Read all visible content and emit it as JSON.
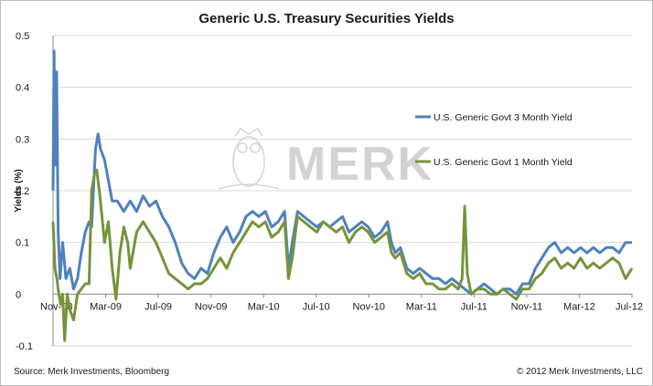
{
  "chart_data": {
    "type": "line",
    "title": "Generic U.S. Treasury Securities Yields",
    "xlabel": "",
    "ylabel": "Yields (%)",
    "ylim": [
      -0.1,
      0.5
    ],
    "yticks": [
      -0.1,
      0,
      0.1,
      0.2,
      0.3,
      0.4,
      0.5
    ],
    "x_tick_labels": [
      "Nov-08",
      "Mar-09",
      "Jul-09",
      "Nov-09",
      "Mar-10",
      "Jul-10",
      "Nov-10",
      "Mar-11",
      "Jul-11",
      "Nov-11",
      "Mar-12",
      "Jul-12"
    ],
    "x_range_months": [
      0,
      45
    ],
    "legend_placement": "right",
    "grid": "horizontal",
    "series": [
      {
        "name": "U.S. Generic Govt 3 Month Yield",
        "color": "#4f81bd",
        "points": [
          [
            0.0,
            0.2
          ],
          [
            0.08,
            0.47
          ],
          [
            0.18,
            0.25
          ],
          [
            0.28,
            0.43
          ],
          [
            0.4,
            0.12
          ],
          [
            0.55,
            0.03
          ],
          [
            0.75,
            0.1
          ],
          [
            1.0,
            0.03
          ],
          [
            1.3,
            0.05
          ],
          [
            1.6,
            0.01
          ],
          [
            1.9,
            0.03
          ],
          [
            2.2,
            0.08
          ],
          [
            2.5,
            0.12
          ],
          [
            2.8,
            0.14
          ],
          [
            3.0,
            0.13
          ],
          [
            3.3,
            0.28
          ],
          [
            3.5,
            0.31
          ],
          [
            3.7,
            0.28
          ],
          [
            4.0,
            0.26
          ],
          [
            4.3,
            0.22
          ],
          [
            4.6,
            0.18
          ],
          [
            5.0,
            0.18
          ],
          [
            5.5,
            0.16
          ],
          [
            6.0,
            0.18
          ],
          [
            6.5,
            0.16
          ],
          [
            7.0,
            0.19
          ],
          [
            7.5,
            0.17
          ],
          [
            8.0,
            0.18
          ],
          [
            8.5,
            0.15
          ],
          [
            9.0,
            0.13
          ],
          [
            9.5,
            0.1
          ],
          [
            10.0,
            0.06
          ],
          [
            10.5,
            0.04
          ],
          [
            11.0,
            0.03
          ],
          [
            11.5,
            0.05
          ],
          [
            12.0,
            0.04
          ],
          [
            12.5,
            0.08
          ],
          [
            13.0,
            0.11
          ],
          [
            13.5,
            0.13
          ],
          [
            14.0,
            0.1
          ],
          [
            14.5,
            0.12
          ],
          [
            15.0,
            0.15
          ],
          [
            15.5,
            0.16
          ],
          [
            16.0,
            0.15
          ],
          [
            16.5,
            0.16
          ],
          [
            17.0,
            0.13
          ],
          [
            17.5,
            0.14
          ],
          [
            18.0,
            0.16
          ],
          [
            18.3,
            0.05
          ],
          [
            18.6,
            0.1
          ],
          [
            19.0,
            0.16
          ],
          [
            19.5,
            0.15
          ],
          [
            20.0,
            0.14
          ],
          [
            20.5,
            0.13
          ],
          [
            21.0,
            0.14
          ],
          [
            21.5,
            0.13
          ],
          [
            22.0,
            0.14
          ],
          [
            22.5,
            0.15
          ],
          [
            23.0,
            0.12
          ],
          [
            23.5,
            0.13
          ],
          [
            24.0,
            0.14
          ],
          [
            24.5,
            0.13
          ],
          [
            25.0,
            0.11
          ],
          [
            25.5,
            0.12
          ],
          [
            26.0,
            0.14
          ],
          [
            26.3,
            0.1
          ],
          [
            26.6,
            0.08
          ],
          [
            27.0,
            0.09
          ],
          [
            27.5,
            0.05
          ],
          [
            28.0,
            0.04
          ],
          [
            28.5,
            0.05
          ],
          [
            29.0,
            0.04
          ],
          [
            29.5,
            0.03
          ],
          [
            30.0,
            0.03
          ],
          [
            30.5,
            0.02
          ],
          [
            31.0,
            0.03
          ],
          [
            31.5,
            0.02
          ],
          [
            32.0,
            0.01
          ],
          [
            32.5,
            0.0
          ],
          [
            33.0,
            0.01
          ],
          [
            33.5,
            0.02
          ],
          [
            34.0,
            0.01
          ],
          [
            34.5,
            0.0
          ],
          [
            35.0,
            0.01
          ],
          [
            35.5,
            0.01
          ],
          [
            36.0,
            0.0
          ],
          [
            36.5,
            0.02
          ],
          [
            37.0,
            0.02
          ],
          [
            37.5,
            0.05
          ],
          [
            38.0,
            0.07
          ],
          [
            38.5,
            0.09
          ],
          [
            39.0,
            0.1
          ],
          [
            39.5,
            0.08
          ],
          [
            40.0,
            0.09
          ],
          [
            40.5,
            0.08
          ],
          [
            41.0,
            0.09
          ],
          [
            41.5,
            0.08
          ],
          [
            42.0,
            0.09
          ],
          [
            42.5,
            0.08
          ],
          [
            43.0,
            0.09
          ],
          [
            43.5,
            0.09
          ],
          [
            44.0,
            0.08
          ],
          [
            44.5,
            0.1
          ],
          [
            45.0,
            0.1
          ]
        ]
      },
      {
        "name": "U.S. Generic Govt 1 Month Yield",
        "color": "#77933c",
        "points": [
          [
            0.0,
            0.14
          ],
          [
            0.15,
            0.05
          ],
          [
            0.3,
            0.03
          ],
          [
            0.45,
            0.0
          ],
          [
            0.6,
            -0.02
          ],
          [
            0.75,
            0.0
          ],
          [
            0.9,
            -0.09
          ],
          [
            1.1,
            0.0
          ],
          [
            1.3,
            -0.03
          ],
          [
            1.6,
            -0.05
          ],
          [
            1.9,
            0.0
          ],
          [
            2.2,
            0.01
          ],
          [
            2.5,
            0.02
          ],
          [
            2.8,
            0.02
          ],
          [
            3.0,
            0.2
          ],
          [
            3.2,
            0.23
          ],
          [
            3.4,
            0.24
          ],
          [
            3.6,
            0.2
          ],
          [
            3.8,
            0.15
          ],
          [
            4.0,
            0.1
          ],
          [
            4.3,
            0.14
          ],
          [
            4.6,
            0.05
          ],
          [
            4.9,
            -0.01
          ],
          [
            5.2,
            0.08
          ],
          [
            5.5,
            0.13
          ],
          [
            5.8,
            0.1
          ],
          [
            6.0,
            0.05
          ],
          [
            6.5,
            0.12
          ],
          [
            7.0,
            0.14
          ],
          [
            7.5,
            0.12
          ],
          [
            8.0,
            0.1
          ],
          [
            8.5,
            0.07
          ],
          [
            9.0,
            0.04
          ],
          [
            9.5,
            0.03
          ],
          [
            10.0,
            0.02
          ],
          [
            10.5,
            0.01
          ],
          [
            11.0,
            0.02
          ],
          [
            11.5,
            0.02
          ],
          [
            12.0,
            0.03
          ],
          [
            12.5,
            0.05
          ],
          [
            13.0,
            0.07
          ],
          [
            13.5,
            0.05
          ],
          [
            14.0,
            0.08
          ],
          [
            14.5,
            0.1
          ],
          [
            15.0,
            0.12
          ],
          [
            15.5,
            0.14
          ],
          [
            16.0,
            0.13
          ],
          [
            16.5,
            0.14
          ],
          [
            17.0,
            0.11
          ],
          [
            17.5,
            0.12
          ],
          [
            18.0,
            0.14
          ],
          [
            18.3,
            0.03
          ],
          [
            18.6,
            0.07
          ],
          [
            19.0,
            0.15
          ],
          [
            19.5,
            0.14
          ],
          [
            20.0,
            0.13
          ],
          [
            20.5,
            0.12
          ],
          [
            21.0,
            0.14
          ],
          [
            21.5,
            0.13
          ],
          [
            22.0,
            0.12
          ],
          [
            22.5,
            0.13
          ],
          [
            23.0,
            0.1
          ],
          [
            23.5,
            0.12
          ],
          [
            24.0,
            0.13
          ],
          [
            24.5,
            0.12
          ],
          [
            25.0,
            0.1
          ],
          [
            25.5,
            0.11
          ],
          [
            26.0,
            0.12
          ],
          [
            26.3,
            0.08
          ],
          [
            26.6,
            0.07
          ],
          [
            27.0,
            0.08
          ],
          [
            27.5,
            0.04
          ],
          [
            28.0,
            0.03
          ],
          [
            28.5,
            0.04
          ],
          [
            29.0,
            0.02
          ],
          [
            29.5,
            0.02
          ],
          [
            30.0,
            0.01
          ],
          [
            30.5,
            0.01
          ],
          [
            31.0,
            0.02
          ],
          [
            31.5,
            0.01
          ],
          [
            31.8,
            0.03
          ],
          [
            32.0,
            0.17
          ],
          [
            32.2,
            0.04
          ],
          [
            32.5,
            0.0
          ],
          [
            33.0,
            0.01
          ],
          [
            33.5,
            0.01
          ],
          [
            34.0,
            0.0
          ],
          [
            34.5,
            0.0
          ],
          [
            35.0,
            0.01
          ],
          [
            35.5,
            0.0
          ],
          [
            36.0,
            -0.01
          ],
          [
            36.5,
            0.01
          ],
          [
            37.0,
            0.01
          ],
          [
            37.5,
            0.03
          ],
          [
            38.0,
            0.04
          ],
          [
            38.5,
            0.06
          ],
          [
            39.0,
            0.07
          ],
          [
            39.5,
            0.05
          ],
          [
            40.0,
            0.06
          ],
          [
            40.5,
            0.05
          ],
          [
            41.0,
            0.07
          ],
          [
            41.5,
            0.05
          ],
          [
            42.0,
            0.06
          ],
          [
            42.5,
            0.05
          ],
          [
            43.0,
            0.06
          ],
          [
            43.5,
            0.07
          ],
          [
            44.0,
            0.06
          ],
          [
            44.5,
            0.03
          ],
          [
            45.0,
            0.05
          ]
        ]
      }
    ],
    "annotations": {
      "watermark": "MERK"
    }
  },
  "footer": {
    "source": "Source: Merk Investments, Bloomberg",
    "copyright": "© 2012 Merk Investments, LLC"
  }
}
